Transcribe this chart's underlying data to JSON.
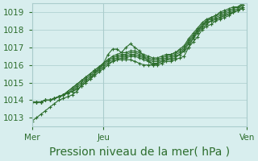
{
  "background_color": "#d8eeee",
  "grid_color": "#aacccc",
  "line_color": "#2d6e2d",
  "marker": "+",
  "xlabel": "Pression niveau de la mer( hPa )",
  "xlabel_fontsize": 10,
  "tick_fontsize": 7.5,
  "xlim": [
    0,
    48
  ],
  "ylim": [
    1012.5,
    1019.5
  ],
  "yticks": [
    1013,
    1014,
    1015,
    1016,
    1017,
    1018,
    1019
  ],
  "xtick_positions": [
    0,
    16,
    48
  ],
  "xtick_labels": [
    "Mer",
    "Jeu",
    "Ven"
  ],
  "series": [
    [
      1012.8,
      1013.0,
      1013.2,
      1013.4,
      1013.6,
      1013.8,
      1014.0,
      1014.1,
      1014.2,
      1014.3,
      1014.5,
      1014.8,
      1015.0,
      1015.2,
      1015.5,
      1015.8,
      1016.1,
      1016.6,
      1016.9,
      1016.9,
      1016.7,
      1017.0,
      1017.2,
      1017.0,
      1016.8,
      1016.5,
      1016.2,
      1016.0,
      1016.0,
      1016.1,
      1016.2,
      1016.2,
      1016.3,
      1016.4,
      1016.5,
      1017.0,
      1017.5,
      1018.0,
      1018.2,
      1018.5,
      1018.7,
      1018.8,
      1019.0,
      1019.1,
      1019.2,
      1019.3,
      1019.3,
      1019.4
    ],
    [
      1013.9,
      1013.9,
      1013.9,
      1014.0,
      1014.0,
      1014.1,
      1014.2,
      1014.3,
      1014.4,
      1014.5,
      1014.6,
      1014.8,
      1015.0,
      1015.2,
      1015.4,
      1015.6,
      1015.8,
      1016.0,
      1016.2,
      1016.3,
      1016.3,
      1016.3,
      1016.3,
      1016.2,
      1016.1,
      1016.0,
      1016.0,
      1016.0,
      1016.1,
      1016.2,
      1016.3,
      1016.3,
      1016.4,
      1016.6,
      1016.8,
      1017.0,
      1017.3,
      1017.6,
      1018.0,
      1018.2,
      1018.3,
      1018.5,
      1018.6,
      1018.7,
      1018.8,
      1019.0,
      1019.1,
      1019.2
    ],
    [
      1013.9,
      1013.9,
      1013.9,
      1014.0,
      1014.0,
      1014.1,
      1014.2,
      1014.3,
      1014.4,
      1014.5,
      1014.7,
      1014.9,
      1015.1,
      1015.3,
      1015.5,
      1015.7,
      1015.9,
      1016.1,
      1016.2,
      1016.3,
      1016.4,
      1016.4,
      1016.5,
      1016.5,
      1016.4,
      1016.3,
      1016.2,
      1016.1,
      1016.1,
      1016.2,
      1016.3,
      1016.4,
      1016.5,
      1016.6,
      1016.8,
      1017.2,
      1017.5,
      1017.8,
      1018.1,
      1018.3,
      1018.5,
      1018.6,
      1018.7,
      1018.8,
      1018.9,
      1019.0,
      1019.1,
      1019.2
    ],
    [
      1013.9,
      1013.9,
      1013.9,
      1014.0,
      1014.0,
      1014.1,
      1014.2,
      1014.3,
      1014.4,
      1014.6,
      1014.8,
      1015.0,
      1015.2,
      1015.4,
      1015.6,
      1015.8,
      1016.0,
      1016.2,
      1016.3,
      1016.4,
      1016.5,
      1016.5,
      1016.6,
      1016.6,
      1016.5,
      1016.4,
      1016.3,
      1016.2,
      1016.2,
      1016.3,
      1016.4,
      1016.5,
      1016.6,
      1016.7,
      1016.9,
      1017.3,
      1017.6,
      1017.9,
      1018.2,
      1018.4,
      1018.5,
      1018.6,
      1018.7,
      1018.8,
      1018.9,
      1019.0,
      1019.1,
      1019.3
    ],
    [
      1013.9,
      1013.9,
      1013.9,
      1014.0,
      1014.0,
      1014.1,
      1014.2,
      1014.3,
      1014.5,
      1014.7,
      1014.9,
      1015.1,
      1015.3,
      1015.5,
      1015.7,
      1015.9,
      1016.1,
      1016.3,
      1016.4,
      1016.5,
      1016.6,
      1016.6,
      1016.7,
      1016.7,
      1016.6,
      1016.5,
      1016.4,
      1016.3,
      1016.3,
      1016.4,
      1016.5,
      1016.6,
      1016.7,
      1016.8,
      1017.0,
      1017.4,
      1017.7,
      1018.0,
      1018.3,
      1018.5,
      1018.6,
      1018.7,
      1018.8,
      1018.9,
      1019.0,
      1019.1,
      1019.2,
      1019.4
    ],
    [
      1013.9,
      1013.9,
      1013.9,
      1014.0,
      1014.0,
      1014.1,
      1014.2,
      1014.3,
      1014.5,
      1014.7,
      1014.9,
      1015.1,
      1015.3,
      1015.5,
      1015.7,
      1015.9,
      1016.1,
      1016.3,
      1016.5,
      1016.6,
      1016.7,
      1016.7,
      1016.8,
      1016.8,
      1016.7,
      1016.6,
      1016.5,
      1016.4,
      1016.4,
      1016.5,
      1016.6,
      1016.6,
      1016.7,
      1016.9,
      1017.1,
      1017.5,
      1017.8,
      1018.1,
      1018.4,
      1018.6,
      1018.7,
      1018.8,
      1018.9,
      1019.0,
      1019.1,
      1019.2,
      1019.3,
      1019.5
    ]
  ]
}
